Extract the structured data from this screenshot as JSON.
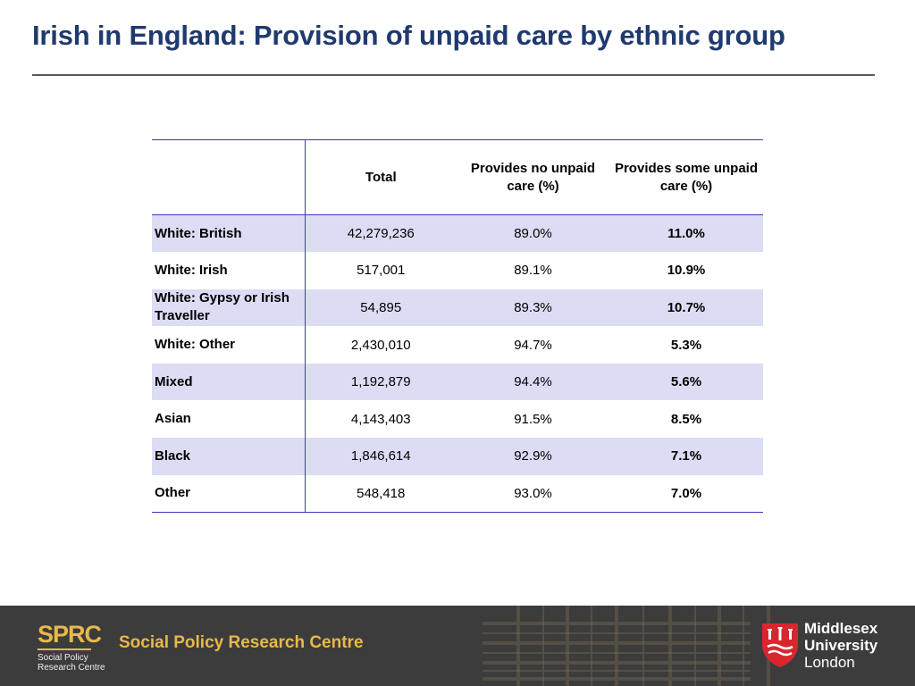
{
  "title": "Irish in England: Provision of unpaid care by ethnic group",
  "table": {
    "headers": [
      "",
      "Total",
      "Provides no unpaid care (%)",
      "Provides some unpaid care (%)"
    ],
    "rows": [
      {
        "group": "White: British",
        "total": "42,279,236",
        "no_care": "89.0%",
        "some_care": "11.0%"
      },
      {
        "group": "White: Irish",
        "total": "517,001",
        "no_care": "89.1%",
        "some_care": "10.9%"
      },
      {
        "group": "White: Gypsy  or Irish Traveller",
        "total": "54,895",
        "no_care": "89.3%",
        "some_care": "10.7%"
      },
      {
        "group": "White: Other",
        "total": "2,430,010",
        "no_care": "94.7%",
        "some_care": "5.3%"
      },
      {
        "group": "Mixed",
        "total": "1,192,879",
        "no_care": "94.4%",
        "some_care": "5.6%"
      },
      {
        "group": "Asian",
        "total": "4,143,403",
        "no_care": "91.5%",
        "some_care": "8.5%"
      },
      {
        "group": "Black",
        "total": "1,846,614",
        "no_care": "92.9%",
        "some_care": "7.1%"
      },
      {
        "group": "Other",
        "total": "548,418",
        "no_care": "93.0%",
        "some_care": "7.0%"
      }
    ]
  },
  "footer": {
    "sprc_mark": "SPRC",
    "sprc_small_1": "Social Policy",
    "sprc_small_2": "Research Centre",
    "centre_name": "Social Policy Research Centre",
    "university_line_1": "Middlesex",
    "university_line_2": "University",
    "university_line_3": "London"
  },
  "colors": {
    "title": "#1f3a6e",
    "table_rule": "#3a3ab8",
    "row_shade": "#dcdcf4",
    "footer_bg": "#3c3c3c",
    "sprc_gold": "#e8b84a",
    "mdx_red": "#d9262e"
  },
  "icons": {
    "mdx_logo": "shield-icon"
  }
}
